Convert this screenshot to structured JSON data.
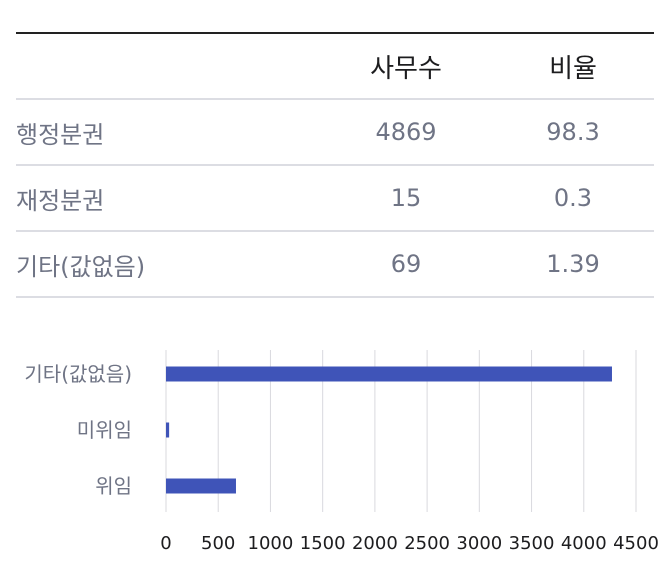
{
  "table": {
    "headers": [
      "",
      "사무수",
      "비율"
    ],
    "rows": [
      {
        "label": "행정분권",
        "count": "4869",
        "ratio": "98.3"
      },
      {
        "label": "재정분권",
        "count": "15",
        "ratio": "0.3"
      },
      {
        "label": "기타(값없음)",
        "count": "69",
        "ratio": "1.39"
      }
    ]
  },
  "chart_data": {
    "type": "bar",
    "orientation": "horizontal",
    "categories": [
      "기타(값없음)",
      "미위임",
      "위임"
    ],
    "values": [
      4270,
      30,
      670
    ],
    "xlim": [
      0,
      4500
    ],
    "xticks": [
      "0",
      "500",
      "1000",
      "1500",
      "2000",
      "2500",
      "3000",
      "3500",
      "4000",
      "4500"
    ],
    "grid": true,
    "bar_color": "#3f54b8"
  }
}
